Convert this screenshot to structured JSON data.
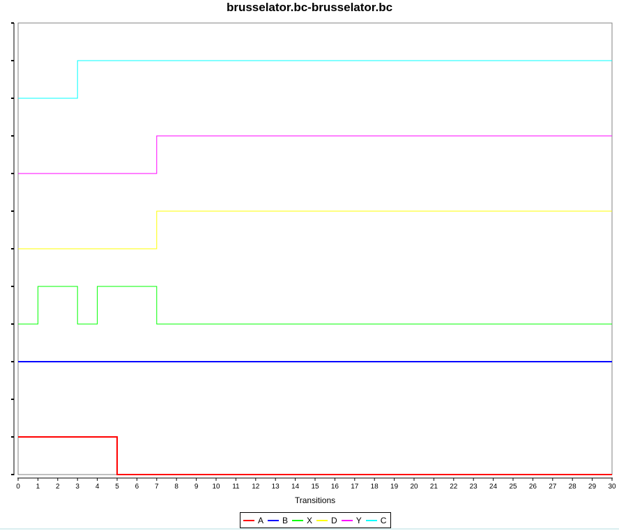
{
  "chart_data": {
    "type": "line",
    "step": true,
    "title": "brusselator.bc-brusselator.bc",
    "xlabel": "Transitions",
    "ylabel": "",
    "xlim": [
      0,
      30
    ],
    "ylim": [
      0,
      12
    ],
    "y_tick_labels_visible": false,
    "grid": false,
    "legend_position": "bottom-center",
    "x_ticks": [
      0,
      1,
      2,
      3,
      4,
      5,
      6,
      7,
      8,
      9,
      10,
      11,
      12,
      13,
      14,
      15,
      16,
      17,
      18,
      19,
      20,
      21,
      22,
      23,
      24,
      25,
      26,
      27,
      28,
      29,
      30
    ],
    "series": [
      {
        "name": "A",
        "color": "#ff0000",
        "points": [
          [
            0,
            1
          ],
          [
            5,
            1
          ],
          [
            5,
            0
          ],
          [
            30,
            0
          ]
        ]
      },
      {
        "name": "B",
        "color": "#0000ff",
        "points": [
          [
            0,
            3
          ],
          [
            30,
            3
          ]
        ]
      },
      {
        "name": "X",
        "color": "#00ff00",
        "points": [
          [
            0,
            4
          ],
          [
            1,
            4
          ],
          [
            1,
            5
          ],
          [
            3,
            5
          ],
          [
            3,
            4
          ],
          [
            4,
            4
          ],
          [
            4,
            5
          ],
          [
            7,
            5
          ],
          [
            7,
            4
          ],
          [
            30,
            4
          ]
        ]
      },
      {
        "name": "D",
        "color": "#ffff00",
        "points": [
          [
            0,
            6
          ],
          [
            7,
            6
          ],
          [
            7,
            7
          ],
          [
            30,
            7
          ]
        ]
      },
      {
        "name": "Y",
        "color": "#ff00ff",
        "points": [
          [
            0,
            8
          ],
          [
            7,
            8
          ],
          [
            7,
            9
          ],
          [
            30,
            9
          ]
        ]
      },
      {
        "name": "C",
        "color": "#00ffff",
        "points": [
          [
            0,
            10
          ],
          [
            3,
            10
          ],
          [
            3,
            11
          ],
          [
            30,
            11
          ]
        ]
      }
    ]
  }
}
